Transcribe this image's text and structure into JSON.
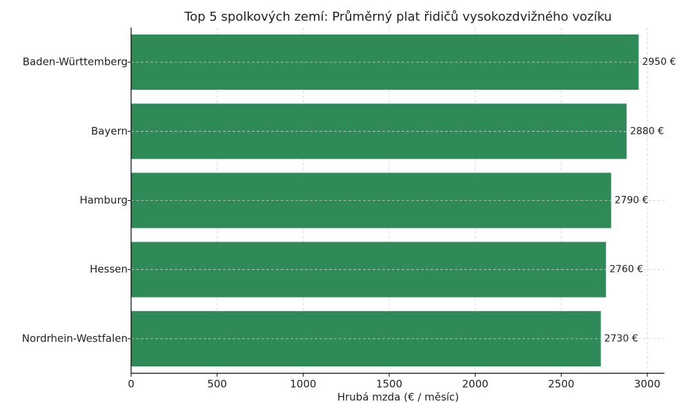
{
  "chart_data": {
    "type": "barh",
    "title": "Top 5 spolkových zemí: Průměrný plat řidičů vysokozdvižného vozíku",
    "x_label": "Hrubá mzda (€ / měsíc)",
    "categories": [
      "Baden-Württemberg",
      "Bayern",
      "Hamburg",
      "Hessen",
      "Nordrhein-Westfalen"
    ],
    "values": [
      2950,
      2880,
      2790,
      2760,
      2730
    ],
    "value_labels": [
      "2950 €",
      "2880 €",
      "2790 €",
      "2760 €",
      "2730 €"
    ],
    "color": "#2e8b57",
    "xlim": [
      0,
      3100
    ],
    "xticks": [
      0,
      500,
      1000,
      1500,
      2000,
      2500,
      3000
    ],
    "grid": true
  }
}
